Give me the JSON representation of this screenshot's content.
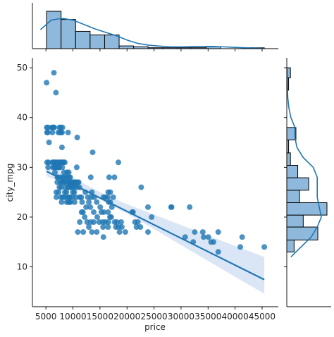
{
  "chart_data": {
    "type": "scatter",
    "title": "",
    "xlabel": "price",
    "ylabel": "city_mpg",
    "xlim": [
      2500,
      48000
    ],
    "ylim": [
      2,
      52
    ],
    "x_ticks": [
      5000,
      10000,
      15000,
      20000,
      25000,
      30000,
      35000,
      40000,
      45000
    ],
    "y_ticks": [
      10,
      20,
      30,
      40,
      50
    ],
    "grid": false,
    "legend": "none",
    "colors": {
      "points": "#1f77b4",
      "line": "#1f77b4",
      "band": "#aec7e8",
      "hist_fill": "#8fb9dc",
      "hist_edge": "#000000"
    },
    "points": [
      [
        5118,
        47
      ],
      [
        6479,
        49
      ],
      [
        6855,
        45
      ],
      [
        5151,
        38
      ],
      [
        5195,
        37
      ],
      [
        5389,
        38
      ],
      [
        5348,
        37
      ],
      [
        6095,
        38
      ],
      [
        6189,
        37
      ],
      [
        6295,
        38
      ],
      [
        6377,
        38
      ],
      [
        6529,
        38
      ],
      [
        7295,
        37
      ],
      [
        7499,
        38
      ],
      [
        7603,
        37
      ],
      [
        7738,
        38
      ],
      [
        7799,
        37
      ],
      [
        8058,
        38
      ],
      [
        7975,
        37
      ],
      [
        9095,
        37
      ],
      [
        10795,
        36
      ],
      [
        5572,
        35
      ],
      [
        7957,
        34
      ],
      [
        13645,
        33
      ],
      [
        5195,
        31
      ],
      [
        5499,
        31
      ],
      [
        6229,
        31
      ],
      [
        6338,
        31
      ],
      [
        6488,
        31
      ],
      [
        6669,
        31
      ],
      [
        6849,
        31
      ],
      [
        7129,
        31
      ],
      [
        7349,
        31
      ],
      [
        7609,
        31
      ],
      [
        7775,
        31
      ],
      [
        7895,
        31
      ],
      [
        8195,
        31
      ],
      [
        8249,
        31
      ],
      [
        8495,
        31
      ],
      [
        18399,
        31
      ],
      [
        5389,
        30
      ],
      [
        6295,
        30
      ],
      [
        6575,
        30
      ],
      [
        6692,
        30
      ],
      [
        7053,
        30
      ],
      [
        7299,
        30
      ],
      [
        7395,
        30
      ],
      [
        7463,
        30
      ],
      [
        8013,
        30
      ],
      [
        10698,
        30
      ],
      [
        6669,
        29
      ],
      [
        8358,
        29
      ],
      [
        8916,
        29
      ],
      [
        9233,
        29
      ],
      [
        7126,
        28
      ],
      [
        7198,
        28
      ],
      [
        7775,
        28
      ],
      [
        8189,
        28
      ],
      [
        8449,
        28
      ],
      [
        8845,
        28
      ],
      [
        9298,
        28
      ],
      [
        9495,
        28
      ],
      [
        13295,
        28
      ],
      [
        16695,
        28
      ],
      [
        17669,
        28
      ],
      [
        7099,
        27
      ],
      [
        7689,
        27
      ],
      [
        7957,
        27
      ],
      [
        8238,
        27
      ],
      [
        8499,
        27
      ],
      [
        8921,
        27
      ],
      [
        9279,
        27
      ],
      [
        9538,
        27
      ],
      [
        9639,
        27
      ],
      [
        9989,
        27
      ],
      [
        10295,
        27
      ],
      [
        10345,
        27
      ],
      [
        10595,
        27
      ],
      [
        10898,
        27
      ],
      [
        11048,
        27
      ],
      [
        7499,
        26
      ],
      [
        7788,
        26
      ],
      [
        8558,
        26
      ],
      [
        9095,
        26
      ],
      [
        9258,
        26
      ],
      [
        9549,
        26
      ],
      [
        9895,
        26
      ],
      [
        10198,
        26
      ],
      [
        10698,
        26
      ],
      [
        11199,
        26
      ],
      [
        22625,
        26
      ],
      [
        6918,
        25
      ],
      [
        7349,
        25
      ],
      [
        8495,
        25
      ],
      [
        8778,
        25
      ],
      [
        9980,
        25
      ],
      [
        10245,
        25
      ],
      [
        12290,
        25
      ],
      [
        13499,
        25
      ],
      [
        16515,
        25
      ],
      [
        16925,
        25
      ],
      [
        6938,
        24
      ],
      [
        7799,
        24
      ],
      [
        8095,
        24
      ],
      [
        8449,
        24
      ],
      [
        8948,
        24
      ],
      [
        9295,
        24
      ],
      [
        9495,
        24
      ],
      [
        9960,
        24
      ],
      [
        10595,
        24
      ],
      [
        11245,
        24
      ],
      [
        11549,
        24
      ],
      [
        12764,
        24
      ],
      [
        13415,
        24
      ],
      [
        13950,
        24
      ],
      [
        15645,
        24
      ],
      [
        15985,
        24
      ],
      [
        16430,
        24
      ],
      [
        17450,
        24
      ],
      [
        7898,
        23
      ],
      [
        8845,
        23
      ],
      [
        9233,
        23
      ],
      [
        9298,
        23
      ],
      [
        9538,
        23
      ],
      [
        10295,
        23
      ],
      [
        11694,
        23
      ],
      [
        12945,
        23
      ],
      [
        14399,
        23
      ],
      [
        16630,
        23
      ],
      [
        16900,
        23
      ],
      [
        12440,
        22
      ],
      [
        13200,
        22
      ],
      [
        15040,
        22
      ],
      [
        17199,
        22
      ],
      [
        23875,
        22
      ],
      [
        28176,
        22
      ],
      [
        28248,
        22
      ],
      [
        31600,
        22
      ],
      [
        11595,
        21
      ],
      [
        11850,
        21
      ],
      [
        13845,
        21
      ],
      [
        15250,
        21
      ],
      [
        15690,
        21
      ],
      [
        16500,
        21
      ],
      [
        20970,
        21
      ],
      [
        21105,
        21
      ],
      [
        12170,
        20
      ],
      [
        14489,
        20
      ],
      [
        16845,
        20
      ],
      [
        17075,
        20
      ],
      [
        24565,
        20
      ],
      [
        11259,
        19
      ],
      [
        12629,
        19
      ],
      [
        13295,
        19
      ],
      [
        13860,
        19
      ],
      [
        14869,
        19
      ],
      [
        15510,
        19
      ],
      [
        15998,
        19
      ],
      [
        16558,
        19
      ],
      [
        17710,
        19
      ],
      [
        18150,
        19
      ],
      [
        18920,
        19
      ],
      [
        21485,
        19
      ],
      [
        22018,
        19
      ],
      [
        12945,
        18
      ],
      [
        15580,
        18
      ],
      [
        16503,
        18
      ],
      [
        17950,
        18
      ],
      [
        18420,
        18
      ],
      [
        19045,
        18
      ],
      [
        21755,
        18
      ],
      [
        22470,
        18
      ],
      [
        10898,
        17
      ],
      [
        11900,
        17
      ],
      [
        13499,
        17
      ],
      [
        14399,
        17
      ],
      [
        18620,
        17
      ],
      [
        19699,
        17
      ],
      [
        23875,
        17
      ],
      [
        32528,
        17
      ],
      [
        34028,
        17
      ],
      [
        36880,
        17
      ],
      [
        15645,
        16
      ],
      [
        30760,
        16
      ],
      [
        34184,
        16
      ],
      [
        35056,
        16
      ],
      [
        41315,
        16
      ],
      [
        32250,
        15
      ],
      [
        35550,
        15
      ],
      [
        36000,
        15
      ],
      [
        40960,
        14
      ],
      [
        45400,
        14
      ],
      [
        36880,
        13
      ]
    ],
    "regression": {
      "slope": -0.0005402,
      "intercept": 31.96,
      "x_range": [
        5118,
        45400
      ],
      "ci_band": [
        [
          5118,
          28.2,
          31.2
        ],
        [
          10000,
          26.0,
          27.9
        ],
        [
          15000,
          23.5,
          25.0
        ],
        [
          20000,
          20.7,
          22.6
        ],
        [
          25000,
          17.6,
          20.5
        ],
        [
          30000,
          14.4,
          18.4
        ],
        [
          35000,
          11.2,
          16.3
        ],
        [
          40000,
          8.0,
          14.2
        ],
        [
          45400,
          4.6,
          12.0
        ]
      ]
    },
    "marginal_x_hist": {
      "bin_edges": [
        5118,
        7803,
        10488,
        13173,
        15858,
        18543,
        21228,
        23913,
        26598,
        29283,
        31968,
        34653,
        37338,
        40023,
        42708,
        45400
      ],
      "counts": [
        41,
        32,
        19,
        15,
        15,
        3,
        2,
        1,
        1,
        1,
        1,
        2,
        0,
        0,
        1
      ],
      "kde_x": [
        4000,
        6000,
        8000,
        10000,
        12000,
        14000,
        16000,
        18000,
        20000,
        22000,
        24000,
        26000,
        28000,
        30000,
        32000,
        34000,
        36000,
        38000,
        40000,
        42000,
        44000,
        45400
      ],
      "kde_y": [
        22,
        33,
        35,
        33,
        28,
        23,
        19,
        15,
        10,
        6,
        4,
        3,
        2,
        2,
        2.3,
        2.5,
        2.5,
        2,
        1.5,
        1,
        0.6,
        0.4
      ]
    },
    "marginal_y_hist": {
      "bin_edges": [
        13,
        15.4,
        18.0,
        20.4,
        22.9,
        25.4,
        27.9,
        30.4,
        32.9,
        35.5,
        38.0,
        40.5,
        43.0,
        45.5,
        48.0,
        50.0
      ],
      "counts": [
        4,
        17,
        9,
        22,
        7,
        12,
        6,
        2,
        1,
        5,
        0,
        0,
        0,
        1,
        2
      ],
      "kde_y": [
        12,
        14,
        16,
        18,
        20,
        22,
        24,
        26,
        28,
        30,
        32,
        34,
        36,
        38,
        40,
        42,
        44,
        46,
        48,
        50
      ],
      "kde_x": [
        2,
        7,
        12,
        15,
        17,
        16,
        15,
        15,
        15,
        13,
        8,
        5,
        4,
        4,
        2,
        1,
        0.5,
        0.3,
        0.2,
        0.1
      ]
    }
  }
}
